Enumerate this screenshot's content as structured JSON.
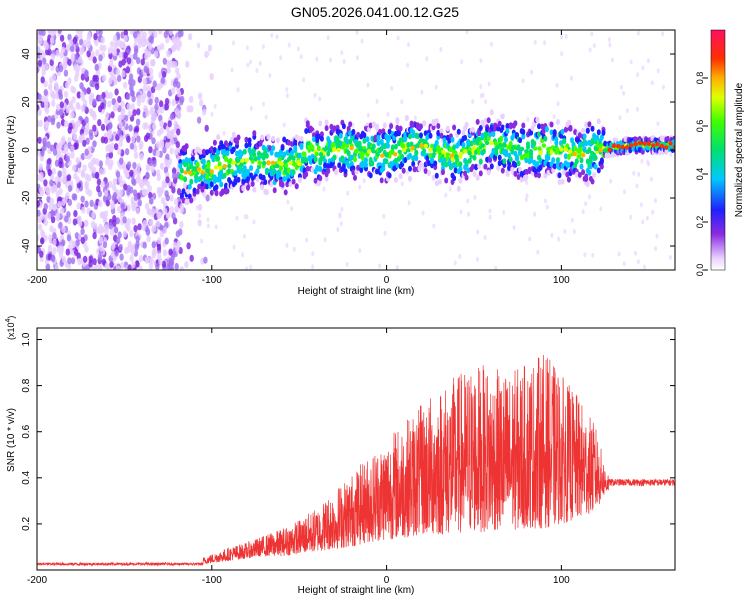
{
  "figure": {
    "title": "GN05.2026.041.00.12.G25"
  },
  "chart_data": [
    {
      "type": "heatmap",
      "name": "spectrogram",
      "xlabel": "Height of straight line (km)",
      "ylabel": "Frequency (Hz)",
      "xlim": [
        -200,
        165
      ],
      "ylim": [
        -50,
        50
      ],
      "xticks": [
        -200,
        -100,
        0,
        100
      ],
      "yticks": [
        -40,
        -20,
        0,
        20,
        40
      ],
      "colorbar": {
        "label": "Normalized spectral amplitude",
        "range": [
          0,
          1
        ],
        "ticks": [
          0.0,
          0.2,
          0.4,
          0.6,
          0.8
        ]
      },
      "ridge": {
        "description": "dominant frequency ridge",
        "x": [
          -118,
          -100,
          -80,
          -60,
          -50,
          -45,
          -40,
          -30,
          -20,
          -10,
          0,
          10,
          20,
          30,
          40,
          50,
          60,
          70,
          80,
          90,
          100,
          110,
          120,
          130,
          140,
          165
        ],
        "y": [
          -10,
          -8,
          -4,
          -6,
          -5,
          2,
          -2,
          1,
          0,
          -1,
          -2,
          0,
          2,
          -1,
          -3,
          0,
          3,
          1,
          -1,
          1,
          0,
          -2,
          0,
          1,
          2,
          2
        ]
      },
      "noise_region_x": [
        -200,
        -100
      ]
    },
    {
      "type": "line",
      "name": "snr",
      "xlabel": "Height of straight line (km)",
      "ylabel": "SNR (10 * v/v)",
      "y_multiplier": "(x10",
      "y_multiplier_exp": "4",
      "y_multiplier_close": ")",
      "xlim": [
        -200,
        165
      ],
      "ylim": [
        0,
        1.05
      ],
      "xticks": [
        -200,
        -100,
        0,
        100
      ],
      "yticks": [
        0.2,
        0.4,
        0.6,
        0.8,
        1.0
      ],
      "series": [
        {
          "name": "SNR",
          "color": "#ee3333",
          "envelope_x": [
            -200,
            -150,
            -110,
            -100,
            -90,
            -80,
            -70,
            -60,
            -50,
            -40,
            -30,
            -20,
            -10,
            0,
            10,
            20,
            30,
            40,
            50,
            60,
            70,
            80,
            90,
            100,
            110,
            120,
            125,
            130,
            140,
            150,
            165
          ],
          "envelope_y": [
            0.03,
            0.03,
            0.04,
            0.07,
            0.1,
            0.12,
            0.15,
            0.18,
            0.22,
            0.27,
            0.35,
            0.42,
            0.5,
            0.58,
            0.65,
            0.72,
            0.8,
            0.85,
            0.9,
            0.88,
            0.86,
            0.9,
            0.95,
            0.85,
            0.75,
            0.62,
            0.45,
            0.4,
            0.39,
            0.38,
            0.38
          ],
          "baseline_y": [
            0.02,
            0.02,
            0.02,
            0.03,
            0.04,
            0.05,
            0.06,
            0.06,
            0.07,
            0.08,
            0.09,
            0.1,
            0.12,
            0.13,
            0.14,
            0.15,
            0.15,
            0.16,
            0.16,
            0.17,
            0.17,
            0.18,
            0.18,
            0.2,
            0.22,
            0.26,
            0.33,
            0.36,
            0.37,
            0.37,
            0.37
          ]
        }
      ]
    }
  ]
}
